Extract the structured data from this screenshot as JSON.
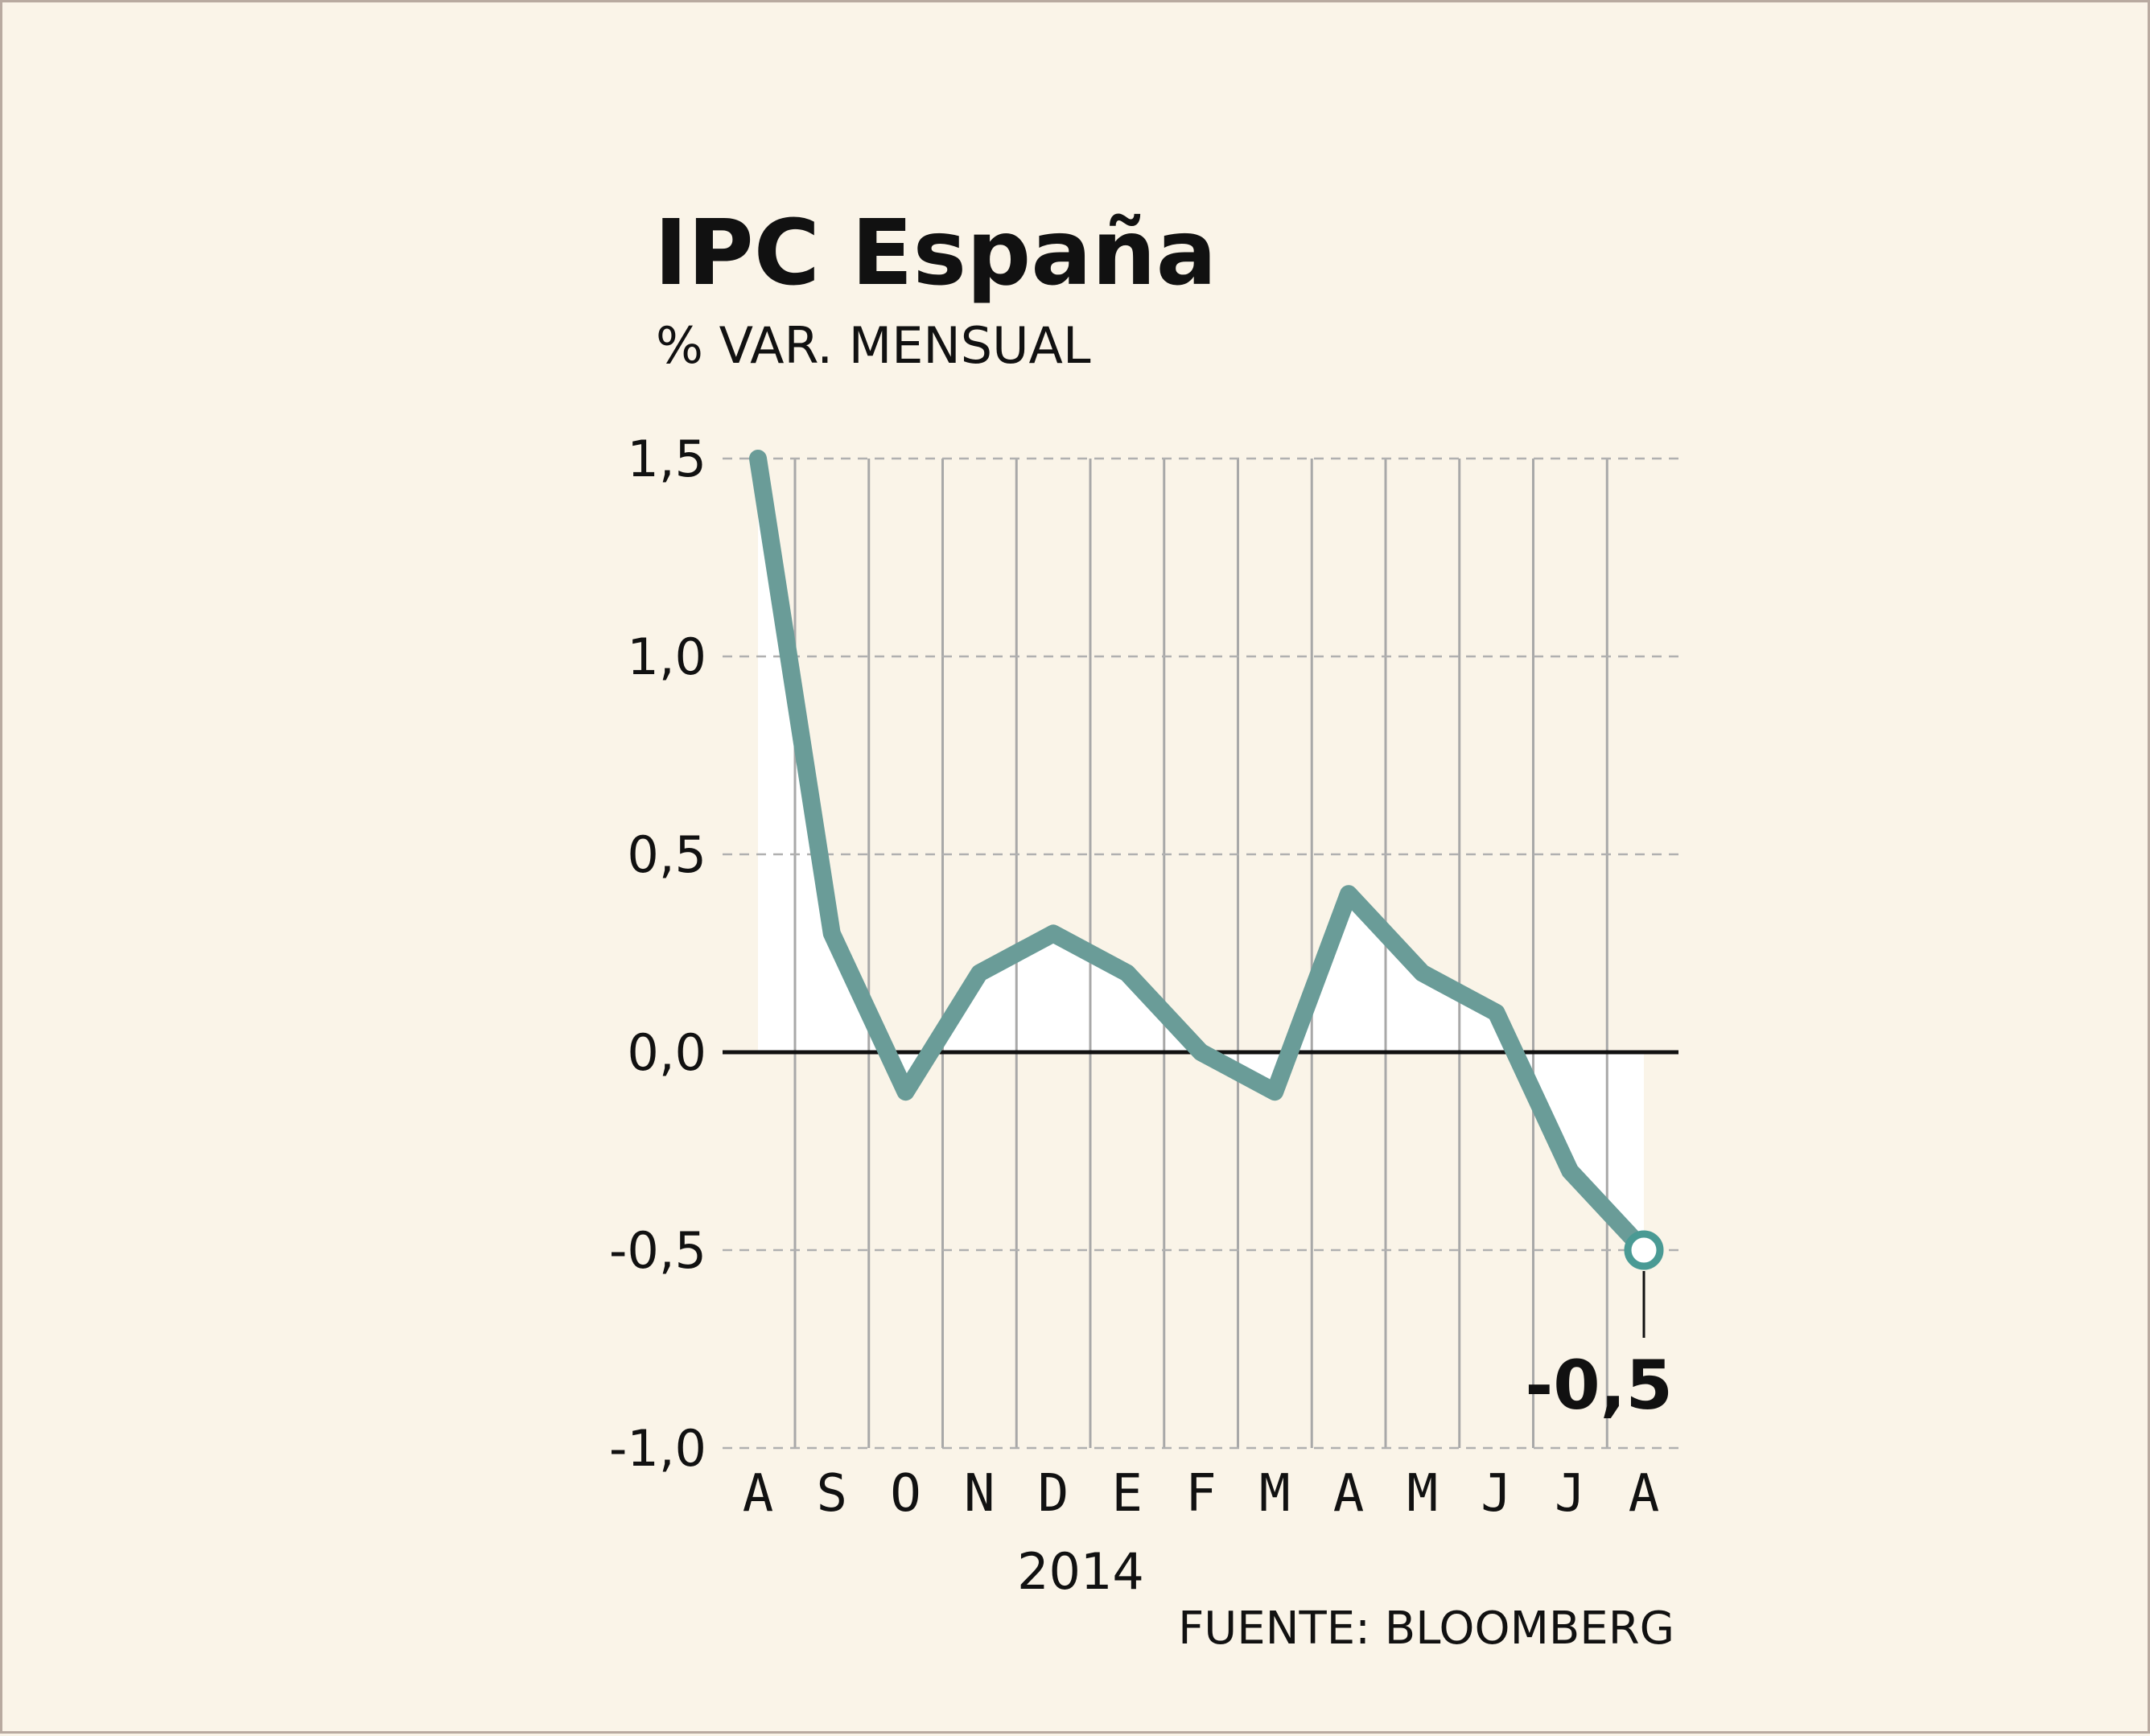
{
  "chart_data": {
    "type": "line",
    "title": "IPC España",
    "subtitle": "% VAR. MENSUAL",
    "categories": [
      "A",
      "S",
      "O",
      "N",
      "D",
      "E",
      "F",
      "M",
      "A",
      "M",
      "J",
      "J",
      "A"
    ],
    "values": [
      1.5,
      0.3,
      -0.1,
      0.2,
      0.3,
      0.2,
      0.0,
      -0.1,
      0.4,
      0.2,
      0.1,
      -0.3,
      -0.5
    ],
    "ylim": [
      -1.0,
      1.5
    ],
    "yticks": [
      "-1,0",
      "-0,5",
      "0,0",
      "0,5",
      "1,0",
      "1,5"
    ],
    "year_label": "2014",
    "source": "FUENTE: BLOOMBERG",
    "highlight_value": "-0,5",
    "grid": true,
    "colors": {
      "line": "#6a9c98",
      "fill": "#ffffff",
      "background": "#faf4e8",
      "marker_stroke": "#4a9a94"
    }
  }
}
